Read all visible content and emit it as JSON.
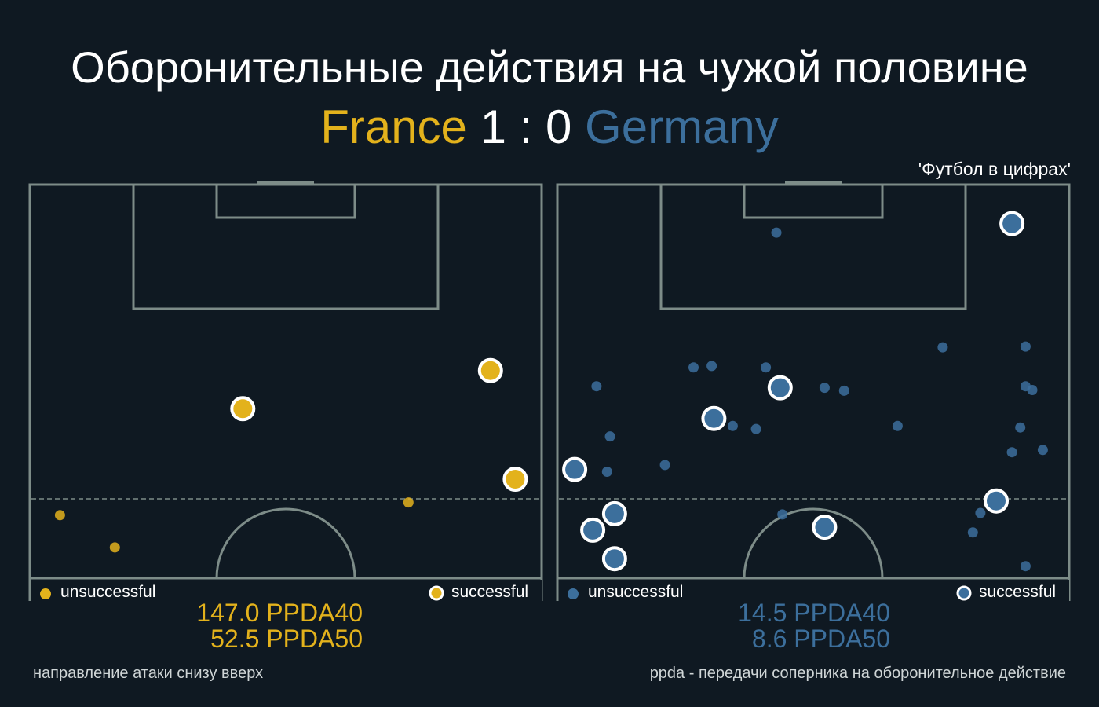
{
  "title": "Оборонительные действия на чужой половине",
  "score": {
    "home_team": "France",
    "home_goals": "1",
    "separator": ":",
    "away_goals": "0",
    "away_team": "Germany"
  },
  "source": "'Футбол в цифрах'",
  "colors": {
    "background": "#0f1922",
    "pitch_lines": "#7d8c88",
    "france": "#e3b21c",
    "germany": "#3c6f9c"
  },
  "legend": {
    "unsuccessful": "unsuccessful",
    "successful": "successful"
  },
  "france_ppda": {
    "ppda40": "147.0 PPDA40",
    "ppda50": "52.5 PPDA50"
  },
  "germany_ppda": {
    "ppda40": "14.5 PPDA40",
    "ppda50": "8.6 PPDA50"
  },
  "footnote_left": "направление атаки снизу вверх",
  "footnote_right": "ppda - передачи соперника на оборонительное действие",
  "chart_data": [
    {
      "type": "scatter",
      "team": "France",
      "color": "#e3b21c",
      "xlim": [
        0,
        68
      ],
      "ylim": [
        50,
        102.5
      ],
      "threshold_line_y": 60,
      "series": [
        {
          "name": "unsuccessful",
          "points": [
            [
              4,
              58.4
            ],
            [
              11.3,
              54.1
            ],
            [
              50.3,
              60.1
            ]
          ]
        },
        {
          "name": "successful",
          "points": [
            [
              28.3,
              72.6
            ],
            [
              61.2,
              77.7
            ],
            [
              64.5,
              63.2
            ]
          ]
        }
      ]
    },
    {
      "type": "scatter",
      "team": "Germany",
      "color": "#3c6f9c",
      "xlim": [
        0,
        68
      ],
      "ylim": [
        50,
        102.5
      ],
      "threshold_line_y": 60,
      "series": [
        {
          "name": "unsuccessful",
          "points": [
            [
              29.1,
              96.1
            ],
            [
              5.2,
              75.6
            ],
            [
              18.1,
              78.1
            ],
            [
              20.5,
              78.3
            ],
            [
              27.7,
              78.1
            ],
            [
              35.5,
              75.4
            ],
            [
              38.1,
              75.0
            ],
            [
              23.3,
              70.3
            ],
            [
              26.4,
              69.9
            ],
            [
              7.0,
              68.9
            ],
            [
              6.6,
              64.2
            ],
            [
              14.3,
              65.1
            ],
            [
              29.9,
              58.5
            ],
            [
              45.2,
              70.3
            ],
            [
              51.2,
              80.8
            ],
            [
              62.2,
              80.9
            ],
            [
              62.2,
              75.6
            ],
            [
              63.1,
              75.1
            ],
            [
              61.5,
              70.1
            ],
            [
              60.4,
              66.8
            ],
            [
              64.5,
              67.1
            ],
            [
              56.2,
              58.7
            ],
            [
              55.2,
              56.1
            ],
            [
              62.2,
              51.6
            ]
          ]
        },
        {
          "name": "successful",
          "points": [
            [
              60.4,
              97.3
            ],
            [
              29.6,
              75.4
            ],
            [
              20.8,
              71.3
            ],
            [
              2.3,
              64.5
            ],
            [
              7.6,
              58.6
            ],
            [
              4.7,
              56.4
            ],
            [
              7.6,
              52.6
            ],
            [
              35.5,
              56.8
            ],
            [
              58.3,
              60.3
            ]
          ]
        }
      ]
    }
  ]
}
